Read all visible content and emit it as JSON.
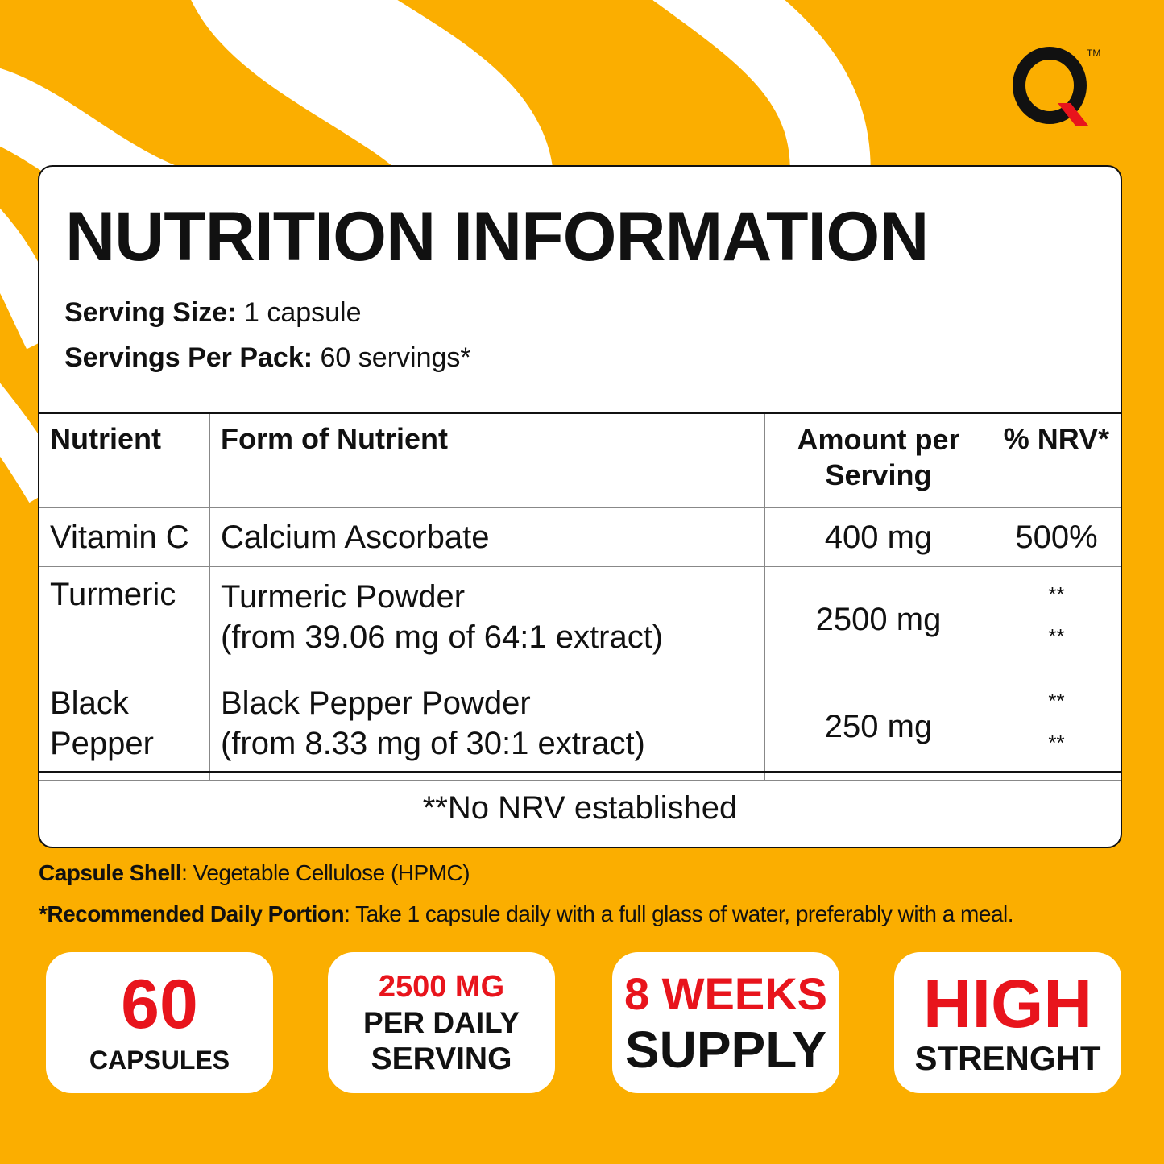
{
  "brand": {
    "logo": "Q",
    "trademark": "TM",
    "colors": {
      "background": "#FBAE00",
      "accent": "#E8141C",
      "text": "#111111"
    }
  },
  "title": "NUTRITION INFORMATION",
  "serving_size": {
    "label": "Serving Size:",
    "value": "1 capsule"
  },
  "servings_per_pack": {
    "label": "Servings Per Pack:",
    "value": "60 servings*"
  },
  "table": {
    "headers": [
      "Nutrient",
      "Form of Nutrient",
      "Amount per Serving",
      "% NRV*"
    ],
    "rows": [
      {
        "nutrient": "Vitamin C",
        "form": [
          "Calcium Ascorbate"
        ],
        "amount": "400 mg",
        "nrv": [
          "500%"
        ]
      },
      {
        "nutrient": "Turmeric",
        "form": [
          "Turmeric Powder",
          "(from 39.06 mg of 64:1 extract)"
        ],
        "amount": "2500 mg",
        "nrv": [
          "**",
          "**"
        ]
      },
      {
        "nutrient": "Black Pepper",
        "form": [
          "Black Pepper Powder",
          "(from 8.33 mg of 30:1 extract)"
        ],
        "amount": "250 mg",
        "nrv": [
          "**",
          "**"
        ]
      }
    ],
    "footnote": "**No NRV established"
  },
  "notes": [
    {
      "label": "Capsule Shell",
      "text": ": Vegetable Cellulose (HPMC)"
    },
    {
      "label": "*Recommended Daily Portion",
      "text": ": Take 1 capsule daily with a full glass of water, preferably with a meal."
    }
  ],
  "badges": [
    {
      "top": "60",
      "bottom": "CAPSULES"
    },
    {
      "top": "2500 MG",
      "middle": "PER DAILY",
      "bottom": "SERVING"
    },
    {
      "top": "8 WEEKS",
      "bottom": "SUPPLY"
    },
    {
      "top": "HIGH",
      "bottom": "STRENGHT"
    }
  ]
}
